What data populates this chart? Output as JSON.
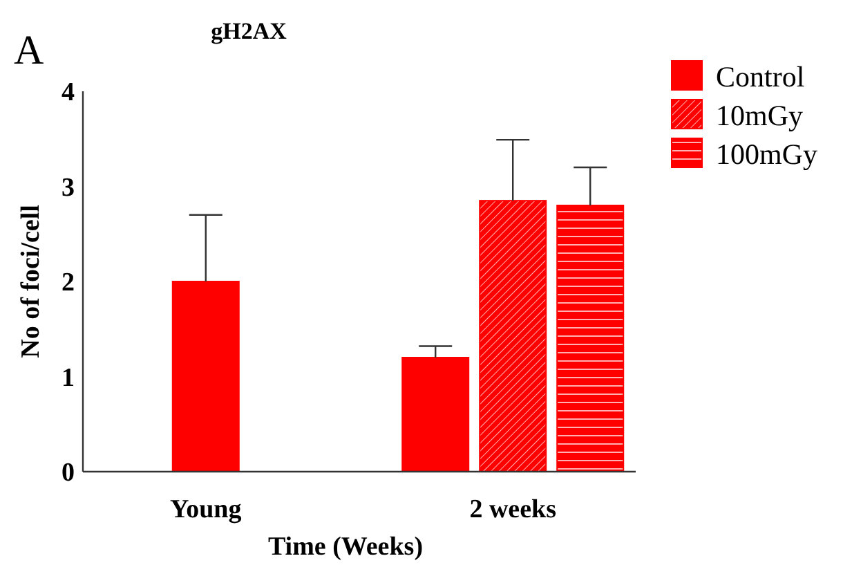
{
  "chart_data": {
    "type": "bar",
    "title": "gH2AX",
    "xlabel": "Time (Weeks)",
    "ylabel": "No of foci/cell",
    "annotations": [
      "A"
    ],
    "categories": [
      "Young",
      "2 weeks"
    ],
    "series": [
      {
        "name": "Control",
        "color": "#ff0000",
        "values": [
          2.0,
          1.2
        ],
        "errors": [
          [
            2.0,
            2.7
          ],
          [
            1.2,
            1.32
          ]
        ]
      },
      {
        "name": "10mGy",
        "color": "#ff0000",
        "values": [
          null,
          2.85
        ],
        "errors": [
          null,
          [
            2.85,
            3.49
          ]
        ]
      },
      {
        "name": "100mGy",
        "color": "#ff0000",
        "values": [
          null,
          2.8
        ],
        "errors": [
          null,
          [
            2.8,
            3.2
          ]
        ]
      }
    ],
    "ylim": [
      0,
      4
    ],
    "yticks": [
      0,
      1,
      2,
      3,
      4
    ],
    "grid": false,
    "legend": "top right"
  }
}
